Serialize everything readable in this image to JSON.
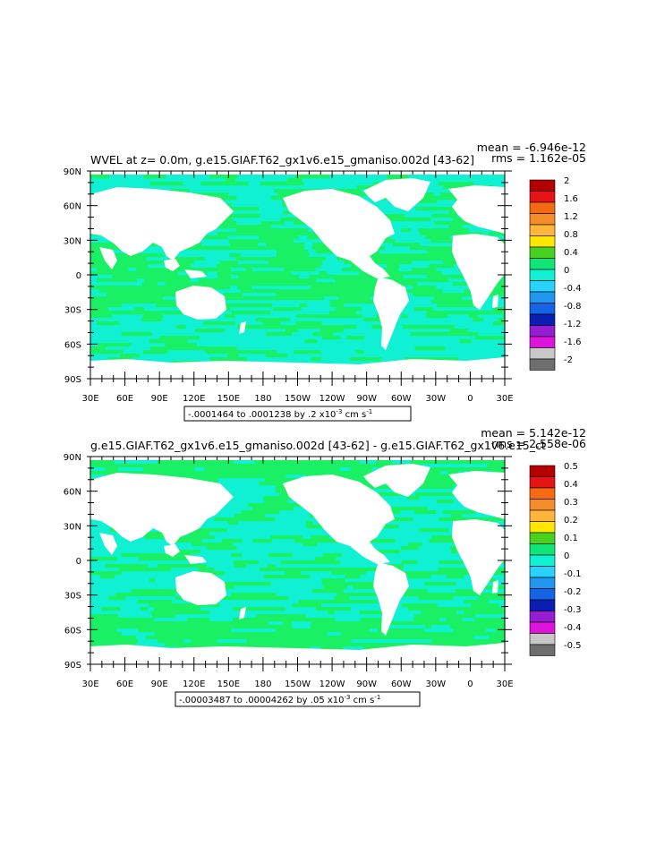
{
  "panels": [
    {
      "title": "WVEL at z=    0.0m, g.e15.GIAF.T62_gx1v6.e15_gmaniso.002d [43-62]",
      "stat_mean": "mean = -6.946e-12",
      "stat_rms": "rms = 1.162e-05",
      "range_text": "-.0001464 to .0001238 by .2 x10",
      "range_exp": "-3",
      "range_unit": " cm s",
      "range_unit_exp": "-1",
      "colorbar_labels": [
        "2",
        "1.6",
        "1.2",
        "0.8",
        "0.4",
        "0",
        "-0.4",
        "-0.8",
        "-1.2",
        "-1.6",
        "-2"
      ]
    },
    {
      "title": "g.e15.GIAF.T62_gx1v6.e15_gmaniso.002d [43-62] - g.e15.GIAF.T62_gx1v6.e15_ct",
      "stat_mean": "mean = 5.142e-12",
      "stat_rms": "rms = 2.558e-06",
      "range_text": "-.00003487 to .00004262 by .05 x10",
      "range_exp": "-3",
      "range_unit": " cm s",
      "range_unit_exp": "-1",
      "colorbar_labels": [
        "0.5",
        "0.4",
        "0.3",
        "0.2",
        "0.1",
        "0",
        "-0.1",
        "-0.2",
        "-0.3",
        "-0.4",
        "-0.5"
      ]
    }
  ],
  "lat_labels": [
    "90N",
    "60N",
    "30N",
    "0",
    "30S",
    "60S",
    "90S"
  ],
  "lon_labels": [
    "30E",
    "60E",
    "90E",
    "120E",
    "150E",
    "180",
    "150W",
    "120W",
    "90W",
    "60W",
    "30W",
    "0",
    "30E"
  ],
  "colorbar_colors": [
    "#b40000",
    "#e61414",
    "#f56a10",
    "#f58c2a",
    "#ffb43c",
    "#ffe600",
    "#46d21e",
    "#10e678",
    "#10f0d2",
    "#28d2fa",
    "#2096f0",
    "#1464e6",
    "#0a1eb4",
    "#961ed2",
    "#dc14dc",
    "#c8c8c8",
    "#6e6e6e"
  ],
  "map_colors": {
    "green": "#19f064",
    "cyan": "#10f0d2",
    "land": "#ffffff"
  }
}
